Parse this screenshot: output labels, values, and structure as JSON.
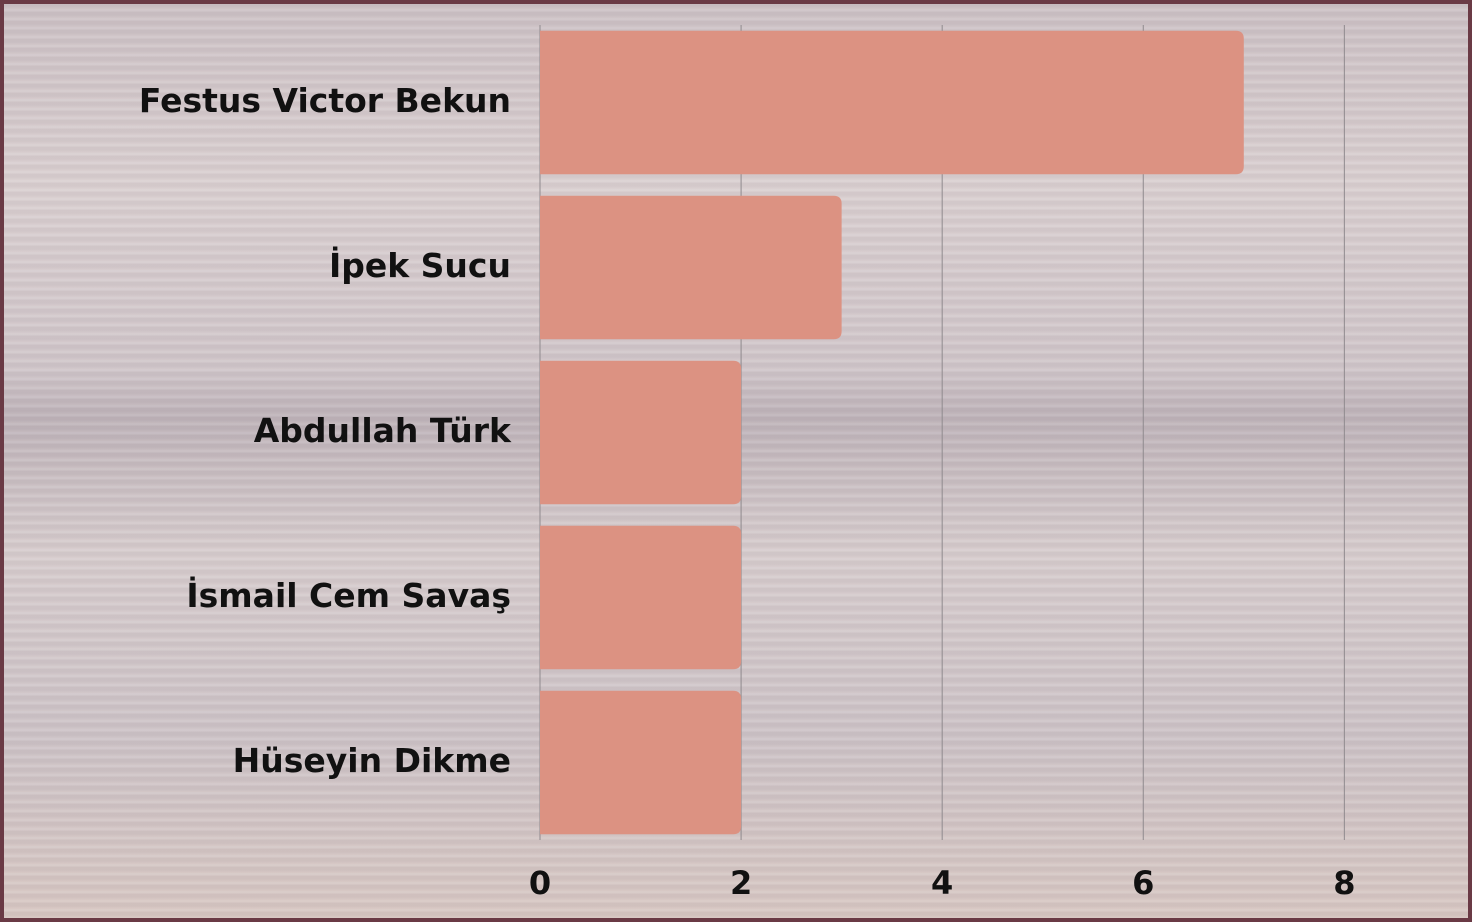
{
  "chart_data": {
    "type": "barh",
    "categories": [
      "Festus Victor Bekun",
      "İpek Sucu",
      "Abdullah Türk",
      "İsmail Cem Savaş",
      "Hüseyin Dikme"
    ],
    "values": [
      7,
      3,
      2,
      2,
      2
    ],
    "color": "#dc9282",
    "xlim": [
      0,
      9.2
    ],
    "xticks": [
      0,
      2,
      4,
      6,
      8
    ],
    "grid": true
  }
}
